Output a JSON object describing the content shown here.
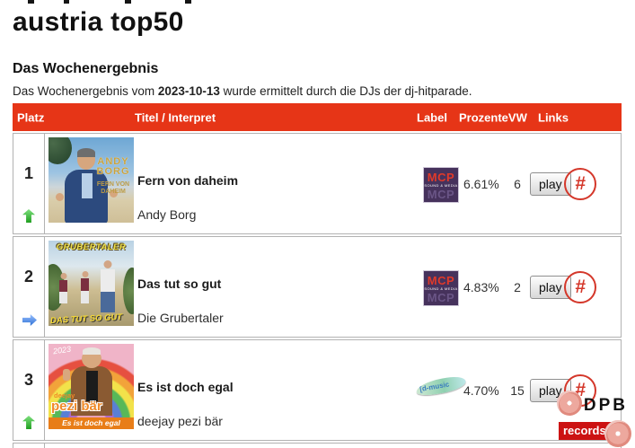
{
  "page": {
    "title": "austria top50",
    "section_heading": "Das Wochenergebnis",
    "intro_prefix": "Das Wochenergebnis vom ",
    "intro_date": "2023-10-13",
    "intro_suffix": " wurde ermittelt durch die DJs der dj-hitparade."
  },
  "table": {
    "headers": {
      "platz": "Platz",
      "titel": "Titel / Interpret",
      "label": "Label",
      "prozente": "Prozente",
      "vw": "VW",
      "links": "Links"
    },
    "play_label": "play",
    "hash_symbol": "#",
    "label_logos": {
      "mcp_text": "MCP",
      "mcp_sub": "SOUND & MEDIA",
      "dmusic_text": "[d-music"
    },
    "rows": [
      {
        "platz": "1",
        "trend": "up",
        "title": "Fern von daheim",
        "artist": "Andy Borg",
        "prozente": "6.61%",
        "vw": "6",
        "cover": {
          "name1": "ANDY",
          "name2": "BORG",
          "title1": "FERN VON",
          "title2": "DAHEIM"
        }
      },
      {
        "platz": "2",
        "trend": "steady",
        "title": "Das tut so gut",
        "artist": "Die Grubertaler",
        "prozente": "4.83%",
        "vw": "2",
        "cover": {
          "top": "GRUBERTALER",
          "bottom": "DAS TUT SO GUT"
        }
      },
      {
        "platz": "3",
        "trend": "up",
        "title": "Es ist doch egal",
        "artist": "deejay pezi bär",
        "prozente": "4.70%",
        "vw": "15",
        "cover": {
          "year": "2023",
          "small": "deejay",
          "big": "pezi bär",
          "bar": "Es ist doch egal"
        }
      }
    ]
  },
  "badge": {
    "line1": "DPB",
    "line2": "records"
  },
  "colors": {
    "header_red": "#e63517",
    "hash_red": "#d4372a",
    "badge_red": "#cc1313"
  }
}
